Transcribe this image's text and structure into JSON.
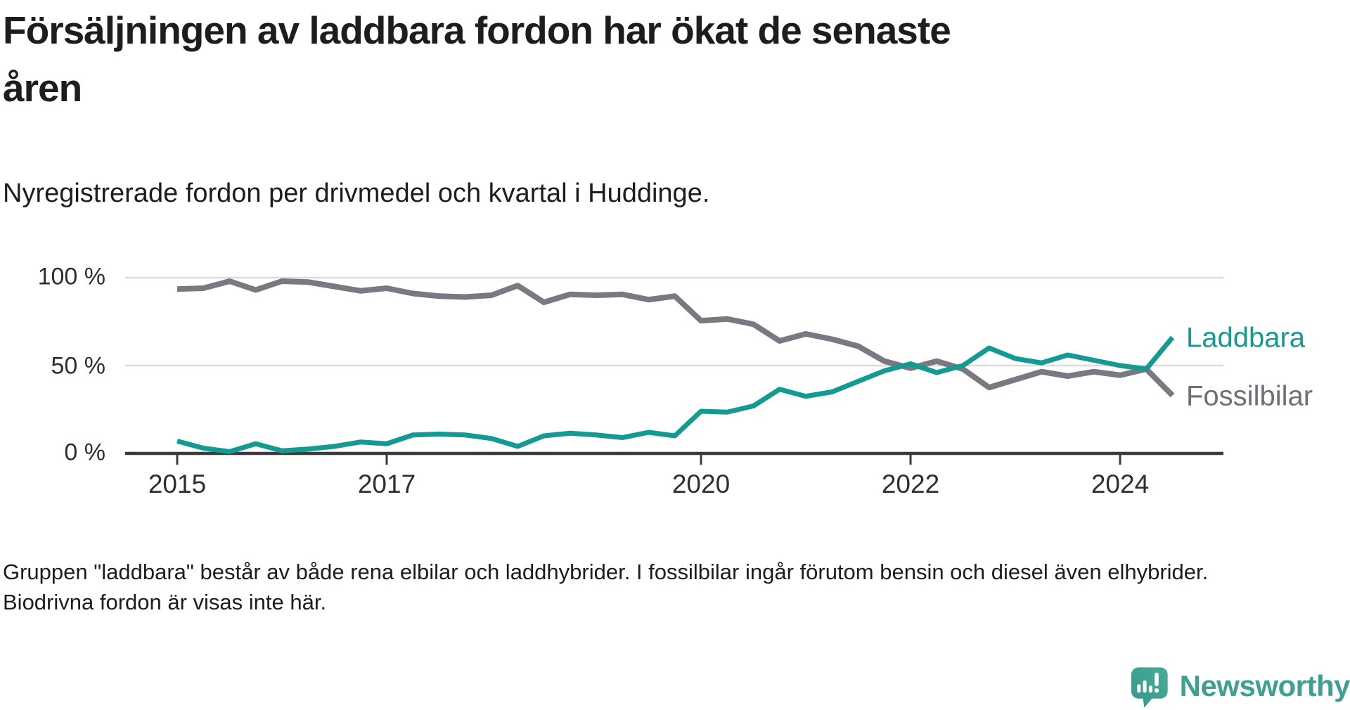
{
  "header": {
    "title_lines": [
      "Försäljningen av laddbara fordon har ökat de senaste",
      "åren"
    ],
    "subtitle": "Nyregistrerade fordon per drivmedel och kvartal i Huddinge."
  },
  "chart_data": {
    "type": "line",
    "title": "Försäljningen av laddbara fordon har ökat de senaste åren",
    "subtitle": "Nyregistrerade fordon per drivmedel och kvartal i Huddinge.",
    "unit": "%",
    "ylim": [
      0,
      100
    ],
    "grid": "horizontal",
    "legend_position": "right-of-line-ends",
    "categories": [
      "2015 Q1",
      "2015 Q2",
      "2015 Q3",
      "2015 Q4",
      "2016 Q1",
      "2016 Q2",
      "2016 Q3",
      "2016 Q4",
      "2017 Q1",
      "2017 Q2",
      "2017 Q3",
      "2017 Q4",
      "2018 Q1",
      "2018 Q2",
      "2018 Q3",
      "2018 Q4",
      "2019 Q1",
      "2019 Q2",
      "2019 Q3",
      "2019 Q4",
      "2020 Q1",
      "2020 Q2",
      "2020 Q3",
      "2020 Q4",
      "2021 Q1",
      "2021 Q2",
      "2021 Q3",
      "2021 Q4",
      "2022 Q1",
      "2022 Q2",
      "2022 Q3",
      "2022 Q4",
      "2023 Q1",
      "2023 Q2",
      "2023 Q3",
      "2023 Q4",
      "2024 Q1",
      "2024 Q2",
      "2024 Q3"
    ],
    "series": [
      {
        "name": "Laddbara",
        "color": "#149a90",
        "label_color": "#149a90",
        "values": [
          7,
          3,
          1,
          5.5,
          1.5,
          2.5,
          4,
          6.5,
          5.5,
          10.5,
          11,
          10.5,
          8.5,
          4,
          10,
          11.5,
          10.5,
          9,
          12,
          10,
          24,
          23.5,
          27,
          36.5,
          32.5,
          35,
          41,
          47,
          51,
          46,
          50,
          60,
          54,
          51.5,
          56,
          53,
          50,
          48,
          66
        ]
      },
      {
        "name": "Fossilbilar",
        "color": "#7a7881",
        "label_color": "#6f6d76",
        "values": [
          93.5,
          94,
          98,
          93,
          98,
          97.5,
          95,
          92.5,
          94,
          91,
          89.5,
          89,
          90,
          95.5,
          86,
          90.5,
          90,
          90.5,
          87.5,
          89.5,
          75.5,
          76.5,
          73.5,
          64,
          68,
          65,
          61,
          52.5,
          48.5,
          52.5,
          48,
          37.5,
          42,
          46.5,
          44,
          46.5,
          44.5,
          48,
          33
        ]
      }
    ],
    "y_ticks": [
      {
        "value": 0,
        "label": "0 %"
      },
      {
        "value": 50,
        "label": "50 %"
      },
      {
        "value": 100,
        "label": "100 %"
      }
    ],
    "x_ticks": [
      {
        "index": 0,
        "label": "2015"
      },
      {
        "index": 8,
        "label": "2017"
      },
      {
        "index": 20,
        "label": "2020"
      },
      {
        "index": 28,
        "label": "2022"
      },
      {
        "index": 36,
        "label": "2024"
      }
    ]
  },
  "footnote": "Gruppen \"laddbara\" består av både rena elbilar och laddhybrider. I fossilbilar ingår förutom bensin och diesel även elhybrider. Biodrivna fordon är visas inte här.",
  "branding": {
    "logo_text": "Newsworthy",
    "logo_color": "#3fa092"
  },
  "colors": {
    "accent_teal": "#149a90",
    "neutral_gray": "#7a7881",
    "grid": "#dcdcdc",
    "axis": "#3b3b3b",
    "text": "#1d1d1b"
  }
}
